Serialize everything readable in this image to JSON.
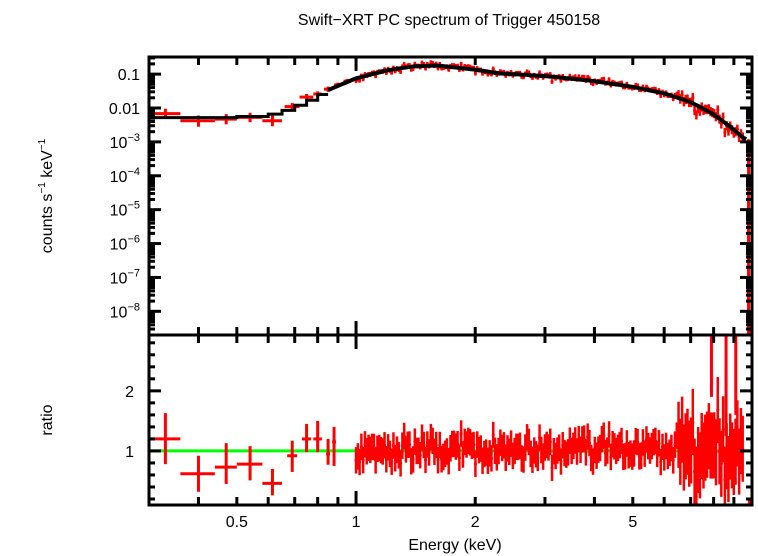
{
  "chart_data": [
    {
      "panel": "spectrum",
      "type": "scatter",
      "title": "Swift−XRT PC spectrum of Trigger 450158",
      "xlabel": "Energy (keV)",
      "ylabel": "counts s⁻¹ keV⁻¹",
      "xscale": "log",
      "yscale": "log",
      "xlim": [
        0.3,
        10
      ],
      "ylim": [
        2e-09,
        0.32
      ],
      "y_ticks": [
        {
          "value": 0.1,
          "label": "0.1"
        },
        {
          "value": 0.01,
          "label": "0.01"
        },
        {
          "value": 0.001,
          "base": "10",
          "exp": "−3"
        },
        {
          "value": 0.0001,
          "base": "10",
          "exp": "−4"
        },
        {
          "value": 1e-05,
          "base": "10",
          "exp": "−5"
        },
        {
          "value": 1e-06,
          "base": "10",
          "exp": "−6"
        },
        {
          "value": 1e-07,
          "base": "10",
          "exp": "−7"
        },
        {
          "value": 1e-08,
          "base": "10",
          "exp": "−8"
        }
      ],
      "series": [
        {
          "name": "data",
          "color": "#ff0000",
          "style": "crosses",
          "points": [
            {
              "x": 0.33,
              "xerr": 0.03,
              "y": 0.0068,
              "yerr": [
                0.0048,
                0.0095
              ]
            },
            {
              "x": 0.4,
              "xerr": 0.04,
              "y": 0.0042,
              "yerr": [
                0.0028,
                0.006
              ]
            },
            {
              "x": 0.47,
              "xerr": 0.03,
              "y": 0.0047,
              "yerr": [
                0.0033,
                0.0066
              ]
            },
            {
              "x": 0.54,
              "xerr": 0.04,
              "y": 0.0053,
              "yerr": [
                0.0038,
                0.0072
              ]
            },
            {
              "x": 0.615,
              "xerr": 0.035,
              "y": 0.0042,
              "yerr": [
                0.0029,
                0.006
              ]
            },
            {
              "x": 0.69,
              "xerr": 0.03,
              "y": 0.011,
              "yerr": [
                0.0085,
                0.014
              ]
            },
            {
              "x": 0.75,
              "xerr": 0.03,
              "y": 0.021,
              "yerr": [
                0.017,
                0.026
              ]
            },
            {
              "x": 0.8,
              "xerr": 0.02,
              "y": 0.026,
              "yerr": [
                0.021,
                0.031
              ]
            },
            {
              "x": 0.85,
              "xerr": 0.02,
              "y": 0.036,
              "yerr": [
                0.03,
                0.043
              ]
            },
            {
              "x": 0.9,
              "xerr": 0.02,
              "y": 0.048,
              "yerr": [
                0.04,
                0.056
              ]
            },
            {
              "x": 0.95,
              "xerr": 0.02,
              "y": 0.062,
              "yerr": [
                0.053,
                0.072
              ]
            }
          ],
          "dense_region": {
            "x_range": [
              1.0,
              9.5
            ],
            "note": "many fine-binned points following the model"
          }
        },
        {
          "name": "model",
          "color": "#000000",
          "style": "step-line",
          "points": [
            {
              "x": 0.3,
              "y": 0.0052
            },
            {
              "x": 0.5,
              "y": 0.0056
            },
            {
              "x": 0.6,
              "y": 0.0066
            },
            {
              "x": 0.65,
              "y": 0.0085
            },
            {
              "x": 0.7,
              "y": 0.012
            },
            {
              "x": 0.75,
              "y": 0.017
            },
            {
              "x": 0.8,
              "y": 0.025
            },
            {
              "x": 0.9,
              "y": 0.045
            },
            {
              "x": 1.0,
              "y": 0.075
            },
            {
              "x": 1.2,
              "y": 0.13
            },
            {
              "x": 1.4,
              "y": 0.17
            },
            {
              "x": 1.6,
              "y": 0.18
            },
            {
              "x": 1.8,
              "y": 0.155
            },
            {
              "x": 2.0,
              "y": 0.135
            },
            {
              "x": 2.3,
              "y": 0.105
            },
            {
              "x": 2.7,
              "y": 0.095
            },
            {
              "x": 3.2,
              "y": 0.082
            },
            {
              "x": 4.0,
              "y": 0.062
            },
            {
              "x": 5.0,
              "y": 0.042
            },
            {
              "x": 6.0,
              "y": 0.027
            },
            {
              "x": 7.0,
              "y": 0.015
            },
            {
              "x": 8.0,
              "y": 0.0065
            },
            {
              "x": 8.8,
              "y": 0.0028
            },
            {
              "x": 9.6,
              "y": 0.0012
            }
          ]
        }
      ]
    },
    {
      "panel": "ratio",
      "type": "scatter",
      "xlabel": "Energy (keV)",
      "ylabel": "ratio",
      "xscale": "log",
      "yscale": "linear",
      "xlim": [
        0.3,
        10
      ],
      "ylim": [
        0.1,
        2.93
      ],
      "x_ticks": [
        {
          "value": 0.5,
          "label": "0.5"
        },
        {
          "value": 1,
          "label": "1"
        },
        {
          "value": 2,
          "label": "2"
        },
        {
          "value": 5,
          "label": "5"
        }
      ],
      "y_ticks": [
        {
          "value": 1,
          "label": "1"
        },
        {
          "value": 2,
          "label": "2"
        }
      ],
      "reference_line": {
        "y": 1,
        "color": "#00ff00"
      },
      "series": [
        {
          "name": "ratio",
          "color": "#ff0000",
          "style": "crosses",
          "points": [
            {
              "x": 0.33,
              "xerr": 0.03,
              "y": 1.2,
              "yerr": [
                0.78,
                1.63
              ]
            },
            {
              "x": 0.4,
              "xerr": 0.04,
              "y": 0.62,
              "yerr": [
                0.32,
                0.92
              ]
            },
            {
              "x": 0.47,
              "xerr": 0.03,
              "y": 0.73,
              "yerr": [
                0.45,
                1.13
              ]
            },
            {
              "x": 0.54,
              "xerr": 0.04,
              "y": 0.78,
              "yerr": [
                0.51,
                1.08
              ]
            },
            {
              "x": 0.615,
              "xerr": 0.035,
              "y": 0.46,
              "yerr": [
                0.26,
                0.7
              ]
            },
            {
              "x": 0.69,
              "xerr": 0.02,
              "y": 0.92,
              "yerr": [
                0.65,
                1.17
              ]
            },
            {
              "x": 0.75,
              "xerr": 0.02,
              "y": 1.2,
              "yerr": [
                0.98,
                1.45
              ]
            },
            {
              "x": 0.8,
              "xerr": 0.02,
              "y": 1.2,
              "yerr": [
                0.98,
                1.5
              ]
            },
            {
              "x": 0.85,
              "xerr": 0.01,
              "y": 0.95,
              "yerr": [
                0.77,
                1.2
              ]
            },
            {
              "x": 0.88,
              "xerr": 0.01,
              "y": 1.15,
              "yerr": [
                0.75,
                1.4
              ]
            }
          ],
          "dense_region": {
            "x_range": [
              0.9,
              9.5
            ],
            "note": "dense scatter around ratio 1, widening above 7 keV up to ~2.9"
          }
        }
      ]
    }
  ],
  "labels": {
    "title": "Swift−XRT PC spectrum of Trigger 450158",
    "ylabel_top_main": "counts s",
    "ylabel_top_sup1": "−1",
    "ylabel_top_mid": " keV",
    "ylabel_top_sup2": "−1",
    "ylabel_bottom": "ratio",
    "xlabel": "Energy (keV)"
  },
  "colors": {
    "data": "#ff0000",
    "model": "#000000",
    "reference": "#00ff00",
    "axes": "#000000"
  }
}
